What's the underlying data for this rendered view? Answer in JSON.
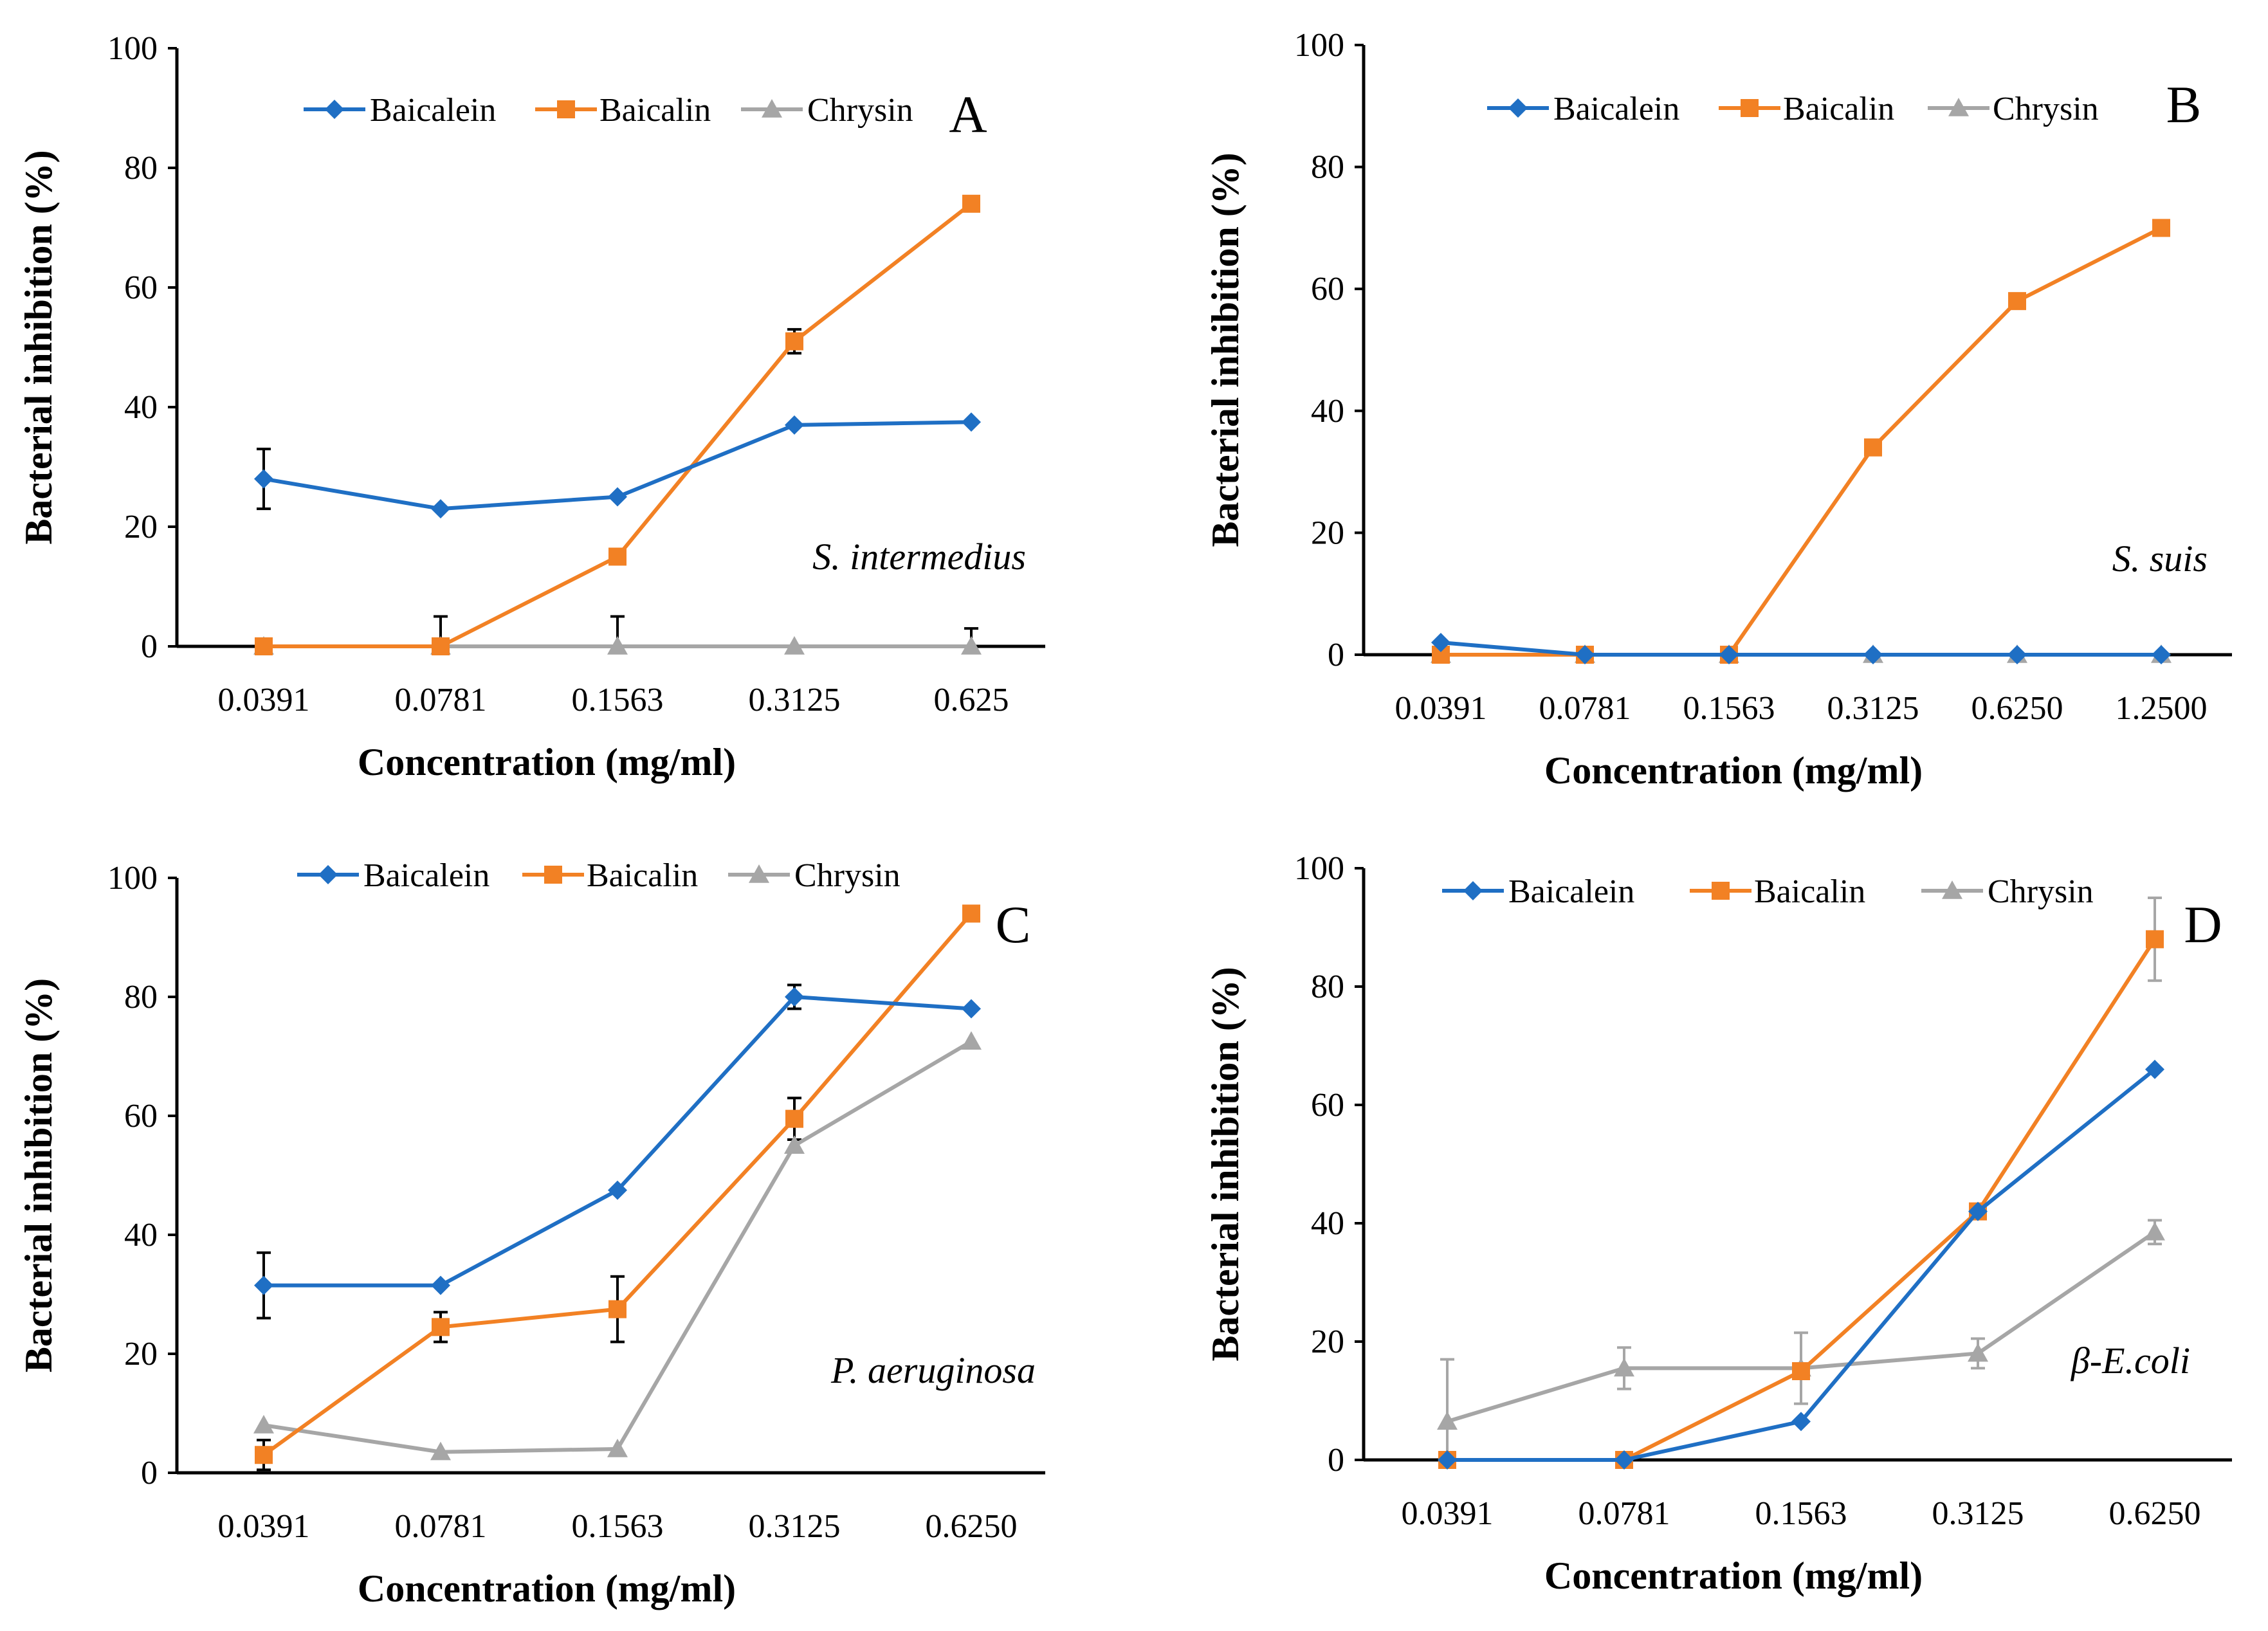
{
  "chart_data": [
    {
      "type": "line",
      "panel": "A",
      "annotation": "S. intermedius",
      "xlabel": "Concentration (mg/ml)",
      "ylabel": "Bacterial inhibition (%)",
      "ylim": [
        0,
        100
      ],
      "yticks": [
        "0",
        "20",
        "40",
        "60",
        "80",
        "100"
      ],
      "categories": [
        "0.0391",
        "0.0781",
        "0.1563",
        "0.3125",
        "0.625"
      ],
      "legend_position": "top",
      "series": [
        {
          "name": "Baicalein",
          "color": "#1f6fc4",
          "marker": "diamond",
          "values": [
            28,
            23,
            25,
            37,
            37.5
          ],
          "errors": [
            5,
            0,
            0,
            0,
            0
          ]
        },
        {
          "name": "Baicalin",
          "color": "#f28124",
          "marker": "square",
          "values": [
            0,
            0,
            15,
            51,
            74
          ],
          "errors": [
            0,
            0,
            0,
            2,
            0
          ]
        },
        {
          "name": "Chrysin",
          "color": "#a6a6a6",
          "marker": "triangle",
          "values": [
            0,
            0,
            0,
            0,
            0
          ],
          "errors": [
            0,
            5,
            5,
            0,
            3
          ]
        }
      ]
    },
    {
      "type": "line",
      "panel": "B",
      "annotation": "S. suis",
      "xlabel": "Concentration (mg/ml)",
      "ylabel": "Bacterial inhibition (%)",
      "ylim": [
        0,
        100
      ],
      "yticks": [
        "0",
        "20",
        "40",
        "60",
        "80",
        "100"
      ],
      "categories": [
        "0.0391",
        "0.0781",
        "0.1563",
        "0.3125",
        "0.6250",
        "1.2500"
      ],
      "legend_position": "top",
      "series": [
        {
          "name": "Baicalein",
          "color": "#1f6fc4",
          "marker": "diamond",
          "values": [
            2,
            0,
            0,
            0,
            0,
            0
          ],
          "errors": [
            0,
            0,
            0,
            0,
            0,
            0
          ]
        },
        {
          "name": "Baicalin",
          "color": "#f28124",
          "marker": "square",
          "values": [
            0,
            0,
            0,
            34,
            58,
            70
          ],
          "errors": [
            0,
            0,
            0,
            0,
            0,
            0
          ]
        },
        {
          "name": "Chrysin",
          "color": "#a6a6a6",
          "marker": "triangle",
          "values": [
            0,
            0,
            0,
            0,
            0,
            0
          ],
          "errors": [
            0,
            0,
            0,
            0,
            0,
            0
          ]
        }
      ]
    },
    {
      "type": "line",
      "panel": "C",
      "annotation": "P. aeruginosa",
      "xlabel": "Concentration (mg/ml)",
      "ylabel": "Bacterial inhibition (%)",
      "ylim": [
        0,
        100
      ],
      "yticks": [
        "0",
        "20",
        "40",
        "60",
        "80",
        "100"
      ],
      "categories": [
        "0.0391",
        "0.0781",
        "0.1563",
        "0.3125",
        "0.6250"
      ],
      "legend_position": "top",
      "series": [
        {
          "name": "Baicalein",
          "color": "#1f6fc4",
          "marker": "diamond",
          "values": [
            31.5,
            31.5,
            47.5,
            80,
            78
          ],
          "errors": [
            5.5,
            0,
            0,
            2,
            0
          ]
        },
        {
          "name": "Baicalin",
          "color": "#f28124",
          "marker": "square",
          "values": [
            3,
            24.5,
            27.5,
            59.5,
            94
          ],
          "errors": [
            2.5,
            2.5,
            5.5,
            3.5,
            0
          ]
        },
        {
          "name": "Chrysin",
          "color": "#a6a6a6",
          "marker": "triangle",
          "values": [
            8,
            3.5,
            4,
            55,
            72.5
          ],
          "errors": [
            0,
            0,
            0,
            0,
            0
          ]
        }
      ]
    },
    {
      "type": "line",
      "panel": "D",
      "annotation": "β-E.coli",
      "xlabel": "Concentration (mg/ml)",
      "ylabel": "Bacterial inhibition (%)",
      "ylim": [
        0,
        100
      ],
      "yticks": [
        "0",
        "20",
        "40",
        "60",
        "80",
        "100"
      ],
      "categories": [
        "0.0391",
        "0.0781",
        "0.1563",
        "0.3125",
        "0.6250"
      ],
      "legend_position": "top",
      "series": [
        {
          "name": "Baicalein",
          "color": "#1f6fc4",
          "marker": "diamond",
          "values": [
            0,
            0,
            6.5,
            42,
            66
          ],
          "errors": [
            0,
            0,
            0,
            0,
            0
          ]
        },
        {
          "name": "Baicalin",
          "color": "#f28124",
          "marker": "square",
          "values": [
            0,
            0,
            15,
            42,
            88
          ],
          "errors": [
            0,
            0,
            0,
            0,
            7
          ]
        },
        {
          "name": "Chrysin",
          "color": "#a6a6a6",
          "marker": "triangle",
          "values": [
            6.5,
            15.5,
            15.5,
            18,
            38.5
          ],
          "errors": [
            10.5,
            3.5,
            6,
            2.5,
            2
          ]
        }
      ]
    }
  ]
}
